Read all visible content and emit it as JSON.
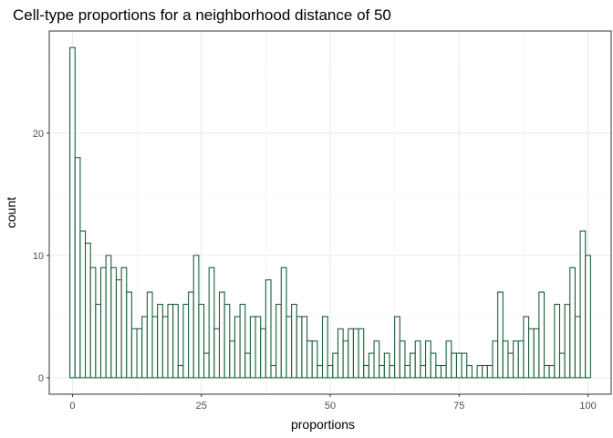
{
  "chart_data": {
    "type": "bar",
    "title": "Cell-type proportions for a neighborhood distance of 50",
    "xlabel": "proportions",
    "ylabel": "count",
    "xlim": [
      -4.5,
      104.5
    ],
    "ylim": [
      -1.35,
      28.35
    ],
    "x_ticks": [
      0,
      25,
      50,
      75,
      100
    ],
    "x_tick_labels": [
      "0",
      "25",
      "50",
      "75",
      "100"
    ],
    "y_ticks": [
      0,
      10,
      20
    ],
    "y_tick_labels": [
      "0",
      "10",
      "20"
    ],
    "bin_width": 1,
    "bin_centers": [
      0,
      1,
      2,
      3,
      4,
      5,
      6,
      7,
      8,
      9,
      10,
      11,
      12,
      13,
      14,
      15,
      16,
      17,
      18,
      19,
      20,
      21,
      22,
      23,
      24,
      25,
      26,
      27,
      28,
      29,
      30,
      31,
      32,
      33,
      34,
      35,
      36,
      37,
      38,
      39,
      40,
      41,
      42,
      43,
      44,
      45,
      46,
      47,
      48,
      49,
      50,
      51,
      52,
      53,
      54,
      55,
      56,
      57,
      58,
      59,
      60,
      61,
      62,
      63,
      64,
      65,
      66,
      67,
      68,
      69,
      70,
      71,
      72,
      73,
      74,
      75,
      76,
      77,
      78,
      79,
      80,
      81,
      82,
      83,
      84,
      85,
      86,
      87,
      88,
      89,
      90,
      91,
      92,
      93,
      94,
      95,
      96,
      97,
      98,
      99,
      100
    ],
    "counts": [
      27,
      18,
      12,
      11,
      9,
      6,
      9,
      10,
      9,
      8,
      9,
      7,
      4,
      4,
      5,
      7,
      5,
      6,
      5,
      6,
      6,
      1,
      6,
      7,
      10,
      6,
      2,
      9,
      4,
      7,
      6,
      3,
      5,
      6,
      2,
      5,
      5,
      4,
      8,
      1,
      6,
      9,
      5,
      6,
      5,
      5,
      3,
      3,
      1,
      5,
      1,
      2,
      4,
      3,
      4,
      4,
      4,
      1,
      2,
      3,
      1,
      2,
      1,
      5,
      3,
      1,
      2,
      3,
      1,
      3,
      2,
      1,
      1,
      3,
      2,
      2,
      2,
      1,
      0,
      1,
      1,
      1,
      3,
      7,
      3,
      2,
      3,
      3,
      5,
      4,
      4,
      7,
      1,
      1,
      6,
      2,
      6,
      9,
      5,
      12,
      10
    ],
    "series": [
      {
        "values_key": "counts",
        "color": "#1b5e3a"
      }
    ],
    "fill": "#ffffff",
    "grid": true,
    "legend": "none"
  }
}
